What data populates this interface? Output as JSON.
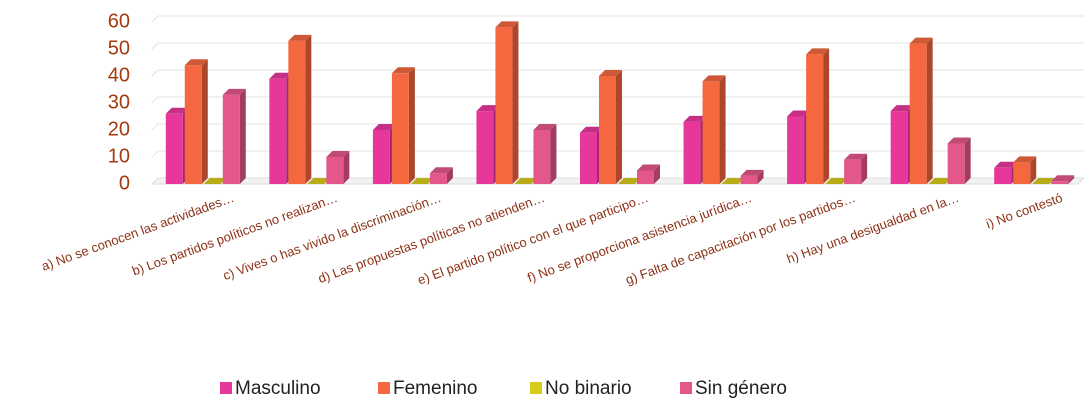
{
  "chart_data": {
    "type": "bar3d",
    "categories": [
      "a) No se conocen las actividades…",
      "b) Los partidos políticos no realizan…",
      "c) Vives o has vivido la discriminación…",
      "d) Las propuestas políticas no atienden…",
      "e) El partido político con el que participo…",
      "f) No se proporciona asistencia jurídica…",
      "g) Falta de capacitación por los partidos…",
      "h) Hay una desigualdad en la…",
      "i) No contestó"
    ],
    "series": [
      {
        "name": "Masculino",
        "color": "#e8379b",
        "values": [
          26,
          39,
          20,
          27,
          19,
          23,
          25,
          27,
          6
        ]
      },
      {
        "name": "Femenino",
        "color": "#f4673f",
        "values": [
          44,
          53,
          41,
          58,
          40,
          38,
          48,
          52,
          8
        ]
      },
      {
        "name": "No binario",
        "color": "#d9cc1c",
        "values": [
          0,
          0,
          0,
          0,
          0,
          0,
          0,
          0,
          0
        ]
      },
      {
        "name": "Sin género",
        "color": "#e4578b",
        "values": [
          33,
          10,
          4,
          20,
          5,
          3,
          9,
          15,
          1
        ]
      }
    ],
    "ylim": [
      0,
      60
    ],
    "yticks": [
      0,
      10,
      20,
      30,
      40,
      50,
      60
    ],
    "grid": true,
    "legend": "bottom"
  }
}
